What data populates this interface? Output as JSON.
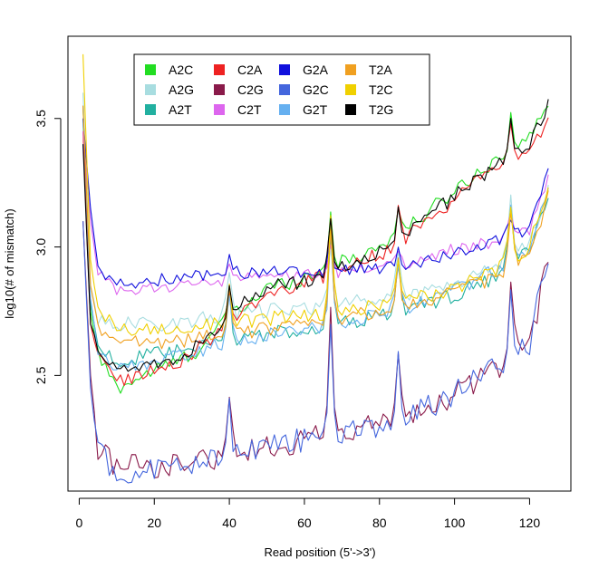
{
  "chart_data": {
    "type": "line",
    "xlabel": "Read position (5'→>3')",
    "xlabel_text": "Read position (5'->3')",
    "ylabel": "log10(# of mismatch)",
    "xlim": [
      -3,
      131
    ],
    "ylim": [
      2.05,
      3.82
    ],
    "xticks": [
      0,
      20,
      40,
      60,
      80,
      100,
      120
    ],
    "yticks": [
      2.5,
      3.0,
      3.5
    ],
    "legend_position": "top-left",
    "legend_columns": 4,
    "spikes": [
      {
        "x": 40,
        "amp": 0.5
      },
      {
        "x": 67,
        "amp": 1.0
      },
      {
        "x": 85,
        "amp": 0.55
      },
      {
        "x": 115,
        "amp": 0.65
      }
    ],
    "series": [
      {
        "name": "A2C",
        "color": "#22dd22",
        "group": "high",
        "anchors": [
          [
            1,
            3.55
          ],
          [
            3,
            2.75
          ],
          [
            5,
            2.58
          ],
          [
            10,
            2.45
          ],
          [
            20,
            2.52
          ],
          [
            30,
            2.58
          ],
          [
            40,
            2.72
          ],
          [
            50,
            2.84
          ],
          [
            60,
            2.88
          ],
          [
            70,
            2.94
          ],
          [
            80,
            3.0
          ],
          [
            90,
            3.1
          ],
          [
            100,
            3.22
          ],
          [
            110,
            3.33
          ],
          [
            120,
            3.42
          ],
          [
            125,
            3.57
          ]
        ]
      },
      {
        "name": "A2G",
        "color": "#a8dde0",
        "group": "mid",
        "anchors": [
          [
            1,
            3.6
          ],
          [
            3,
            2.85
          ],
          [
            5,
            2.72
          ],
          [
            10,
            2.7
          ],
          [
            20,
            2.7
          ],
          [
            30,
            2.71
          ],
          [
            40,
            2.74
          ],
          [
            50,
            2.75
          ],
          [
            60,
            2.76
          ],
          [
            70,
            2.78
          ],
          [
            80,
            2.8
          ],
          [
            90,
            2.82
          ],
          [
            100,
            2.86
          ],
          [
            110,
            2.92
          ],
          [
            120,
            3.02
          ],
          [
            125,
            3.22
          ]
        ]
      },
      {
        "name": "A2T",
        "color": "#22b0a0",
        "group": "mid",
        "anchors": [
          [
            1,
            3.5
          ],
          [
            3,
            2.78
          ],
          [
            5,
            2.62
          ],
          [
            10,
            2.55
          ],
          [
            20,
            2.58
          ],
          [
            30,
            2.6
          ],
          [
            40,
            2.64
          ],
          [
            50,
            2.66
          ],
          [
            60,
            2.68
          ],
          [
            70,
            2.7
          ],
          [
            80,
            2.73
          ],
          [
            90,
            2.77
          ],
          [
            100,
            2.81
          ],
          [
            110,
            2.88
          ],
          [
            120,
            2.98
          ],
          [
            125,
            3.2
          ]
        ]
      },
      {
        "name": "C2A",
        "color": "#ee2222",
        "group": "high",
        "anchors": [
          [
            1,
            3.45
          ],
          [
            3,
            2.7
          ],
          [
            5,
            2.57
          ],
          [
            10,
            2.48
          ],
          [
            20,
            2.52
          ],
          [
            30,
            2.58
          ],
          [
            40,
            2.71
          ],
          [
            50,
            2.82
          ],
          [
            60,
            2.86
          ],
          [
            70,
            2.91
          ],
          [
            80,
            2.97
          ],
          [
            90,
            3.07
          ],
          [
            100,
            3.18
          ],
          [
            110,
            3.3
          ],
          [
            120,
            3.38
          ],
          [
            125,
            3.48
          ]
        ]
      },
      {
        "name": "C2G",
        "color": "#8a1a4a",
        "group": "low",
        "anchors": [
          [
            1,
            3.1
          ],
          [
            3,
            2.5
          ],
          [
            5,
            2.22
          ],
          [
            10,
            2.15
          ],
          [
            20,
            2.14
          ],
          [
            30,
            2.16
          ],
          [
            40,
            2.2
          ],
          [
            50,
            2.22
          ],
          [
            60,
            2.25
          ],
          [
            70,
            2.28
          ],
          [
            80,
            2.31
          ],
          [
            90,
            2.35
          ],
          [
            100,
            2.42
          ],
          [
            110,
            2.52
          ],
          [
            120,
            2.62
          ],
          [
            125,
            2.95
          ]
        ]
      },
      {
        "name": "C2T",
        "color": "#dd66ee",
        "group": "top",
        "anchors": [
          [
            1,
            3.45
          ],
          [
            3,
            3.1
          ],
          [
            5,
            2.9
          ],
          [
            10,
            2.82
          ],
          [
            20,
            2.84
          ],
          [
            30,
            2.86
          ],
          [
            40,
            2.87
          ],
          [
            50,
            2.88
          ],
          [
            60,
            2.89
          ],
          [
            70,
            2.9
          ],
          [
            80,
            2.92
          ],
          [
            90,
            2.95
          ],
          [
            100,
            2.99
          ],
          [
            110,
            3.02
          ],
          [
            120,
            3.06
          ],
          [
            125,
            3.27
          ]
        ]
      },
      {
        "name": "G2A",
        "color": "#1010dd",
        "group": "top",
        "anchors": [
          [
            1,
            3.5
          ],
          [
            3,
            3.15
          ],
          [
            5,
            2.92
          ],
          [
            10,
            2.85
          ],
          [
            20,
            2.87
          ],
          [
            30,
            2.89
          ],
          [
            40,
            2.9
          ],
          [
            50,
            2.9
          ],
          [
            60,
            2.9
          ],
          [
            70,
            2.91
          ],
          [
            80,
            2.92
          ],
          [
            90,
            2.94
          ],
          [
            100,
            2.98
          ],
          [
            110,
            3.02
          ],
          [
            120,
            3.07
          ],
          [
            125,
            3.29
          ]
        ]
      },
      {
        "name": "G2C",
        "color": "#4466dd",
        "group": "low",
        "anchors": [
          [
            1,
            3.1
          ],
          [
            3,
            2.45
          ],
          [
            5,
            2.2
          ],
          [
            10,
            2.13
          ],
          [
            20,
            2.13
          ],
          [
            30,
            2.15
          ],
          [
            40,
            2.19
          ],
          [
            50,
            2.22
          ],
          [
            60,
            2.25
          ],
          [
            70,
            2.28
          ],
          [
            80,
            2.31
          ],
          [
            90,
            2.36
          ],
          [
            100,
            2.43
          ],
          [
            110,
            2.53
          ],
          [
            120,
            2.63
          ],
          [
            125,
            2.97
          ]
        ]
      },
      {
        "name": "G2T",
        "color": "#66b0f0",
        "group": "mid",
        "anchors": [
          [
            1,
            3.55
          ],
          [
            3,
            2.8
          ],
          [
            5,
            2.6
          ],
          [
            10,
            2.52
          ],
          [
            20,
            2.56
          ],
          [
            30,
            2.59
          ],
          [
            40,
            2.63
          ],
          [
            50,
            2.66
          ],
          [
            60,
            2.68
          ],
          [
            70,
            2.71
          ],
          [
            80,
            2.74
          ],
          [
            90,
            2.78
          ],
          [
            100,
            2.83
          ],
          [
            110,
            2.9
          ],
          [
            120,
            2.99
          ],
          [
            125,
            3.21
          ]
        ]
      },
      {
        "name": "T2A",
        "color": "#f0a020",
        "group": "mid",
        "anchors": [
          [
            1,
            3.55
          ],
          [
            3,
            2.85
          ],
          [
            5,
            2.7
          ],
          [
            10,
            2.62
          ],
          [
            20,
            2.63
          ],
          [
            30,
            2.64
          ],
          [
            40,
            2.66
          ],
          [
            50,
            2.68
          ],
          [
            60,
            2.7
          ],
          [
            70,
            2.72
          ],
          [
            80,
            2.75
          ],
          [
            90,
            2.78
          ],
          [
            100,
            2.82
          ],
          [
            110,
            2.88
          ],
          [
            120,
            2.97
          ],
          [
            125,
            3.2
          ]
        ]
      },
      {
        "name": "T2C",
        "color": "#f0d000",
        "group": "mid",
        "anchors": [
          [
            1,
            3.75
          ],
          [
            3,
            2.95
          ],
          [
            5,
            2.75
          ],
          [
            10,
            2.68
          ],
          [
            20,
            2.68
          ],
          [
            30,
            2.69
          ],
          [
            40,
            2.71
          ],
          [
            50,
            2.72
          ],
          [
            60,
            2.73
          ],
          [
            70,
            2.75
          ],
          [
            80,
            2.77
          ],
          [
            90,
            2.8
          ],
          [
            100,
            2.84
          ],
          [
            110,
            2.9
          ],
          [
            120,
            3.0
          ],
          [
            125,
            3.25
          ]
        ]
      },
      {
        "name": "T2G",
        "color": "#000000",
        "group": "high",
        "anchors": [
          [
            1,
            3.4
          ],
          [
            3,
            2.7
          ],
          [
            5,
            2.62
          ],
          [
            10,
            2.52
          ],
          [
            20,
            2.54
          ],
          [
            30,
            2.6
          ],
          [
            40,
            2.74
          ],
          [
            50,
            2.84
          ],
          [
            60,
            2.87
          ],
          [
            70,
            2.92
          ],
          [
            80,
            2.98
          ],
          [
            90,
            3.08
          ],
          [
            100,
            3.2
          ],
          [
            110,
            3.31
          ],
          [
            120,
            3.4
          ],
          [
            125,
            3.56
          ]
        ]
      }
    ]
  }
}
